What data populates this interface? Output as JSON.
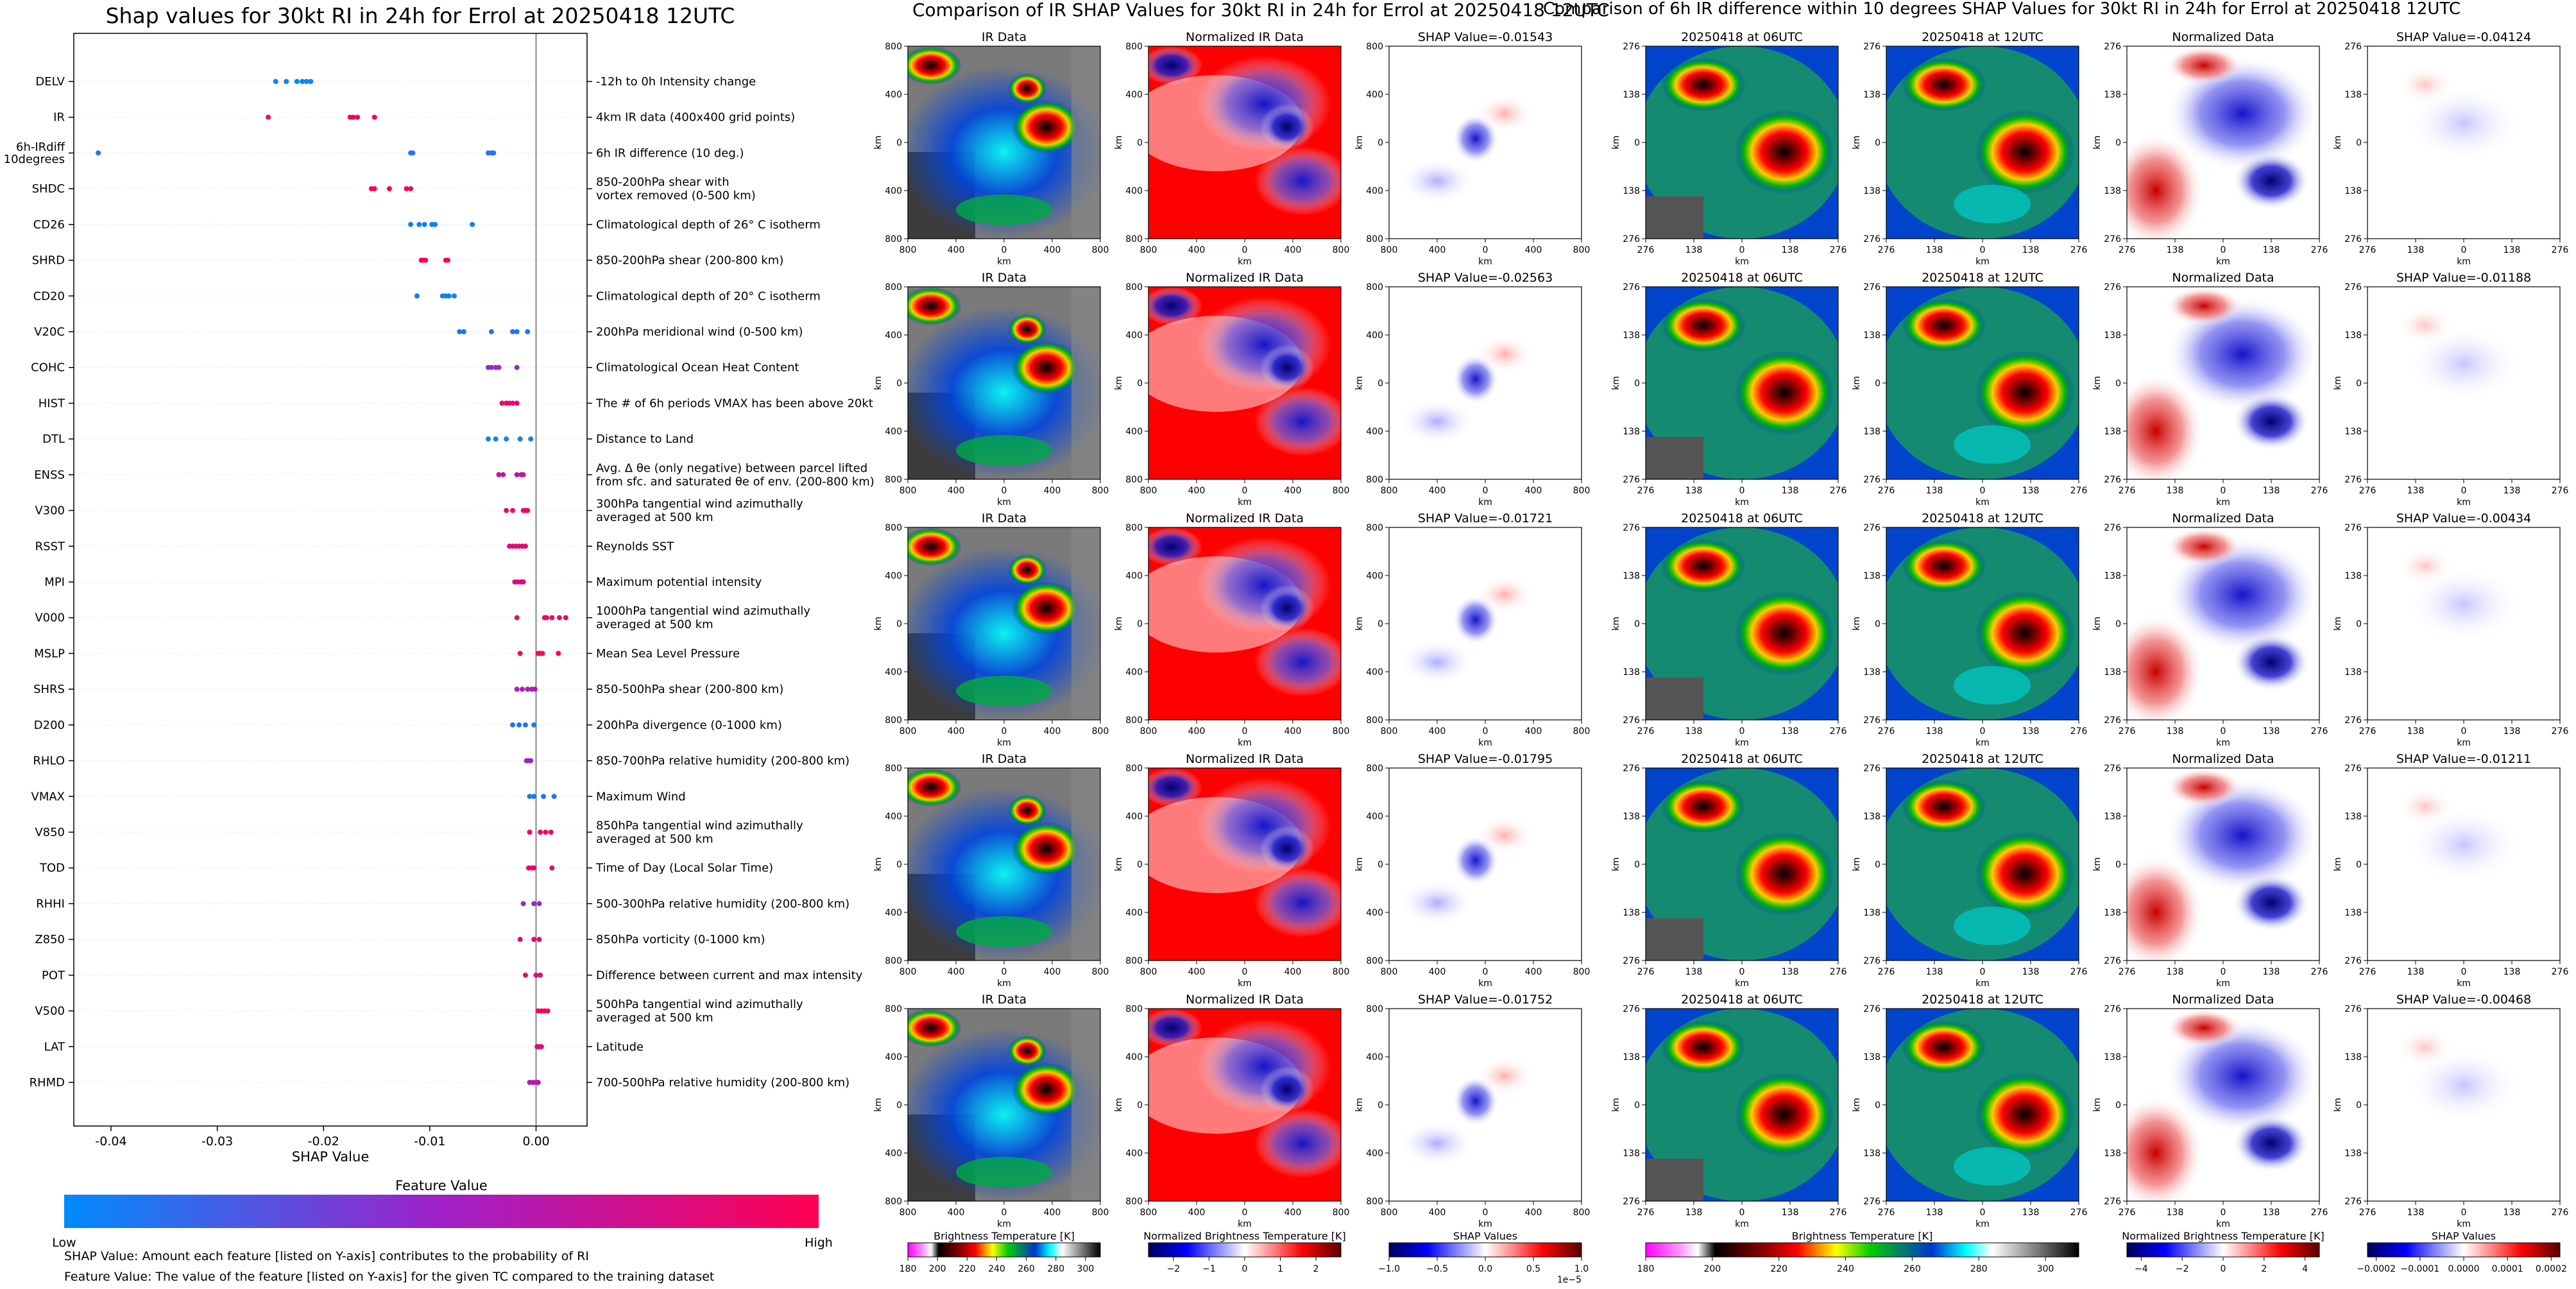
{
  "left_panel": {
    "title": "Shap values for 30kt RI in 24h for Errol at 20250418 12UTC",
    "xlabel": "SHAP Value",
    "colorbar": {
      "title": "Feature Value",
      "low_label": "Low",
      "high_label": "High",
      "low_color": "#008bfb",
      "mid_color": "#a020c8",
      "high_color": "#ff0052"
    },
    "note_1": "SHAP Value: Amount each feature [listed on Y-axis] contributes to the probability of RI",
    "note_2": "Feature Value: The value of the feature [listed on Y-axis] for the given TC compared to the training dataset"
  },
  "chart_data": [
    {
      "type": "scatter",
      "title": "Shap values for 30kt RI in 24h for Errol at 20250418 12UTC",
      "xlabel": "SHAP Value",
      "xlim": [
        -0.0435,
        0.0048
      ],
      "x_ticks": [
        "-0.04",
        "-0.03",
        "-0.02",
        "-0.01",
        "0.00"
      ],
      "x_tick_values": [
        -0.04,
        -0.03,
        -0.02,
        -0.01,
        0.0
      ],
      "features": [
        {
          "code": "DELV",
          "desc": [
            "-12h to 0h Intensity change"
          ],
          "shap": [
            -0.0245,
            -0.0235,
            -0.0225,
            -0.022,
            -0.0216,
            -0.0212
          ],
          "fv": [
            0.02,
            0.03,
            0.02,
            0.03,
            0.02,
            0.04
          ]
        },
        {
          "code": "IR",
          "desc": [
            "4km IR data (400x400 grid points)"
          ],
          "shap": [
            -0.0252,
            -0.0175,
            -0.0172,
            -0.0168,
            -0.0152
          ],
          "fv": [
            0.95,
            0.95,
            0.95,
            0.9,
            0.95
          ]
        },
        {
          "code": "6h-IRdiff\n10degrees",
          "desc": [
            "6h IR difference (10 deg.)"
          ],
          "shap": [
            -0.0412,
            -0.0118,
            -0.0116,
            -0.0045,
            -0.0042,
            -0.004
          ],
          "fv": [
            0.1,
            0.1,
            0.1,
            0.1,
            0.1,
            0.1
          ]
        },
        {
          "code": "SHDC",
          "desc": [
            "850-200hPa shear with",
            "vortex removed (0-500 km)"
          ],
          "shap": [
            -0.0155,
            -0.0152,
            -0.0138,
            -0.0122,
            -0.0118
          ],
          "fv": [
            0.95,
            0.95,
            0.95,
            0.95,
            0.95
          ]
        },
        {
          "code": "CD26",
          "desc": [
            "Climatological depth of 26° C isotherm"
          ],
          "shap": [
            -0.0118,
            -0.011,
            -0.0105,
            -0.0098,
            -0.0095,
            -0.006
          ],
          "fv": [
            0.05,
            0.05,
            0.05,
            0.05,
            0.05,
            0.05
          ]
        },
        {
          "code": "SHRD",
          "desc": [
            "850-200hPa shear (200-800 km)"
          ],
          "shap": [
            -0.0108,
            -0.0106,
            -0.0104,
            -0.0085,
            -0.0083
          ],
          "fv": [
            0.95,
            0.95,
            0.95,
            0.95,
            0.95
          ]
        },
        {
          "code": "CD20",
          "desc": [
            "Climatological depth of 20° C isotherm"
          ],
          "shap": [
            -0.0112,
            -0.0088,
            -0.0085,
            -0.0082,
            -0.0077
          ],
          "fv": [
            0.05,
            0.05,
            0.05,
            0.05,
            0.05
          ]
        },
        {
          "code": "V20C",
          "desc": [
            "200hPa meridional wind (0-500 km)"
          ],
          "shap": [
            -0.0072,
            -0.0068,
            -0.0042,
            -0.0022,
            -0.0018,
            -0.0008
          ],
          "fv": [
            0.1,
            0.1,
            0.1,
            0.1,
            0.1,
            0.1
          ]
        },
        {
          "code": "COHC",
          "desc": [
            "Climatological Ocean Heat Content"
          ],
          "shap": [
            -0.0045,
            -0.0042,
            -0.0038,
            -0.0035,
            -0.0018
          ],
          "fv": [
            0.45,
            0.45,
            0.45,
            0.45,
            0.45
          ]
        },
        {
          "code": "HIST",
          "desc": [
            "The # of 6h periods VMAX has been above 20kt"
          ],
          "shap": [
            -0.0032,
            -0.0028,
            -0.0025,
            -0.0022,
            -0.0018
          ],
          "fv": [
            0.88,
            0.88,
            0.88,
            0.88,
            0.88
          ]
        },
        {
          "code": "DTL",
          "desc": [
            "Distance to Land"
          ],
          "shap": [
            -0.0045,
            -0.0038,
            -0.0028,
            -0.0015,
            -0.0005
          ],
          "fv": [
            0.05,
            0.05,
            0.05,
            0.05,
            0.05
          ]
        },
        {
          "code": "ENSS",
          "desc": [
            "Avg. Δ θe (only negative) between parcel lifted",
            "from sfc. and saturated θe of env. (200-800 km)"
          ],
          "shap": [
            -0.0035,
            -0.0031,
            -0.0018,
            -0.0014,
            -0.0012
          ],
          "fv": [
            0.7,
            0.7,
            0.7,
            0.7,
            0.7
          ]
        },
        {
          "code": "V300",
          "desc": [
            "300hPa tangential wind azimuthally",
            "averaged at 500 km"
          ],
          "shap": [
            -0.0028,
            -0.0022,
            -0.0012,
            -0.001,
            -0.0008
          ],
          "fv": [
            0.9,
            0.9,
            0.9,
            0.9,
            0.9
          ]
        },
        {
          "code": "RSST",
          "desc": [
            "Reynolds SST"
          ],
          "shap": [
            -0.0025,
            -0.0022,
            -0.0019,
            -0.0016,
            -0.0013,
            -0.001
          ],
          "fv": [
            0.85,
            0.85,
            0.85,
            0.85,
            0.85,
            0.85
          ]
        },
        {
          "code": "MPI",
          "desc": [
            "Maximum potential intensity"
          ],
          "shap": [
            -0.002,
            -0.0017,
            -0.0014,
            -0.0012
          ],
          "fv": [
            0.8,
            0.8,
            0.8,
            0.8
          ]
        },
        {
          "code": "V000",
          "desc": [
            "1000hPa tangential wind azimuthally",
            "averaged at 500 km"
          ],
          "shap": [
            -0.0018,
            0.0008,
            0.001,
            0.0015,
            0.0022,
            0.0028
          ],
          "fv": [
            0.9,
            0.9,
            0.9,
            0.9,
            0.9,
            0.9
          ]
        },
        {
          "code": "MSLP",
          "desc": [
            "Mean Sea Level Pressure"
          ],
          "shap": [
            -0.0015,
            0.0002,
            0.0004,
            0.0006,
            0.0021
          ],
          "fv": [
            0.95,
            0.95,
            0.95,
            0.95,
            0.95
          ]
        },
        {
          "code": "SHRS",
          "desc": [
            "850-500hPa shear (200-800 km)"
          ],
          "shap": [
            -0.0018,
            -0.0013,
            -0.0008,
            -0.0004,
            -0.0001
          ],
          "fv": [
            0.6,
            0.6,
            0.6,
            0.6,
            0.6
          ]
        },
        {
          "code": "D200",
          "desc": [
            "200hPa divergence (0-1000 km)"
          ],
          "shap": [
            -0.0022,
            -0.0016,
            -0.001,
            -0.0002
          ],
          "fv": [
            0.1,
            0.1,
            0.1,
            0.1
          ]
        },
        {
          "code": "RHLO",
          "desc": [
            "850-700hPa relative humidity (200-800 km)"
          ],
          "shap": [
            -0.0009,
            -0.0007,
            -0.0005
          ],
          "fv": [
            0.5,
            0.5,
            0.5
          ]
        },
        {
          "code": "VMAX",
          "desc": [
            "Maximum Wind"
          ],
          "shap": [
            -0.0006,
            -0.0002,
            0.0007,
            0.0017
          ],
          "fv": [
            0.1,
            0.1,
            0.1,
            0.1
          ]
        },
        {
          "code": "V850",
          "desc": [
            "850hPa tangential wind azimuthally",
            "averaged at 500 km"
          ],
          "shap": [
            -0.0006,
            0.0004,
            0.0009,
            0.0014
          ],
          "fv": [
            0.9,
            0.9,
            0.9,
            0.9
          ]
        },
        {
          "code": "TOD",
          "desc": [
            "Time of Day (Local Solar Time)"
          ],
          "shap": [
            -0.0007,
            -0.0004,
            -0.0002,
            0.0015
          ],
          "fv": [
            0.9,
            0.9,
            0.9,
            0.9
          ]
        },
        {
          "code": "RHHI",
          "desc": [
            "500-300hPa relative humidity (200-800 km)"
          ],
          "shap": [
            -0.0012,
            -0.0002,
            0.0003
          ],
          "fv": [
            0.45,
            0.45,
            0.45
          ]
        },
        {
          "code": "Z850",
          "desc": [
            "850hPa vorticity (0-1000 km)"
          ],
          "shap": [
            -0.0015,
            -0.0002,
            0.0003
          ],
          "fv": [
            0.85,
            0.85,
            0.85
          ]
        },
        {
          "code": "POT",
          "desc": [
            "Difference between current and max intensity"
          ],
          "shap": [
            -0.001,
            0.0,
            0.0004
          ],
          "fv": [
            0.85,
            0.85,
            0.85
          ]
        },
        {
          "code": "V500",
          "desc": [
            "500hPa tangential wind azimuthally",
            "averaged at 500 km"
          ],
          "shap": [
            0.0002,
            0.0005,
            0.0008,
            0.0011
          ],
          "fv": [
            0.95,
            0.95,
            0.95,
            0.95
          ]
        },
        {
          "code": "LAT",
          "desc": [
            "Latitude"
          ],
          "shap": [
            0.0001,
            0.0003,
            0.0005
          ],
          "fv": [
            0.85,
            0.85,
            0.85
          ]
        },
        {
          "code": "RHMD",
          "desc": [
            "700-500hPa relative humidity (200-800 km)"
          ],
          "shap": [
            -0.0006,
            -0.0003,
            0.0,
            0.0002
          ],
          "fv": [
            0.6,
            0.6,
            0.6,
            0.6
          ]
        }
      ]
    },
    {
      "type": "image-grid",
      "title": "Comparison of IR SHAP Values for 30kt RI in 24h for Errol at 20250418 12UTC",
      "column_titles": [
        "IR Data",
        "Normalized IR Data"
      ],
      "shap_titles": [
        "SHAP Value=-0.01543",
        "SHAP Value=-0.02563",
        "SHAP Value=-0.01721",
        "SHAP Value=-0.01795",
        "SHAP Value=-0.01752"
      ],
      "axis_label": "km",
      "x_ticks": [
        "800",
        "400",
        "0",
        "400",
        "800"
      ],
      "y_ticks": [
        "800",
        "400",
        "0",
        "400",
        "800"
      ],
      "colorbars": [
        {
          "label": "Brightness Temperature [K]",
          "ticks": [
            "180",
            "200",
            "220",
            "240",
            "260",
            "280",
            "300"
          ],
          "vmin": 180,
          "vmax": 310
        },
        {
          "label": "Normalized Brightness Temperature [K]",
          "ticks": [
            "−2",
            "−1",
            "0",
            "1",
            "2"
          ],
          "vmin": -2.7,
          "vmax": 2.7
        },
        {
          "label": "SHAP Values",
          "ticks": [
            "−1.0",
            "−0.5",
            "0.0",
            "0.5",
            "1.0"
          ],
          "vmin": -1.0,
          "vmax": 1.0,
          "multiplier": "1e−5"
        }
      ]
    },
    {
      "type": "image-grid",
      "title": "Comparison of 6h IR difference within 10 degrees SHAP Values for 30kt RI in 24h for Errol at 20250418 12UTC",
      "column_titles": [
        "20250418 at 06UTC",
        "20250418 at 12UTC",
        "Normalized Data"
      ],
      "shap_titles": [
        "SHAP Value=-0.04124",
        "SHAP Value=-0.01188",
        "SHAP Value=-0.00434",
        "SHAP Value=-0.01211",
        "SHAP Value=-0.00468"
      ],
      "axis_label": "km",
      "x_ticks": [
        "276",
        "138",
        "0",
        "138",
        "276"
      ],
      "y_ticks": [
        "276",
        "138",
        "0",
        "138",
        "276"
      ],
      "colorbars": [
        {
          "label": "Brightness Temperature [K]",
          "ticks": [
            "180",
            "200",
            "220",
            "240",
            "260",
            "280",
            "300"
          ],
          "vmin": 180,
          "vmax": 310
        },
        {
          "label": "Normalized Brightness Temperature [K]",
          "ticks": [
            "−4",
            "−2",
            "0",
            "2",
            "4"
          ],
          "vmin": -4.7,
          "vmax": 4.7
        },
        {
          "label": "SHAP Values",
          "ticks": [
            "−0.0002",
            "−0.0001",
            "0.0000",
            "0.0001",
            "0.0002"
          ],
          "vmin": -0.00022,
          "vmax": 0.00022
        }
      ]
    }
  ],
  "colors": {
    "blue": "#008bfb",
    "purple": "#a020c8",
    "magenta": "#ff0052",
    "zero_line": "#888888",
    "grid_line": "#dddddd"
  }
}
